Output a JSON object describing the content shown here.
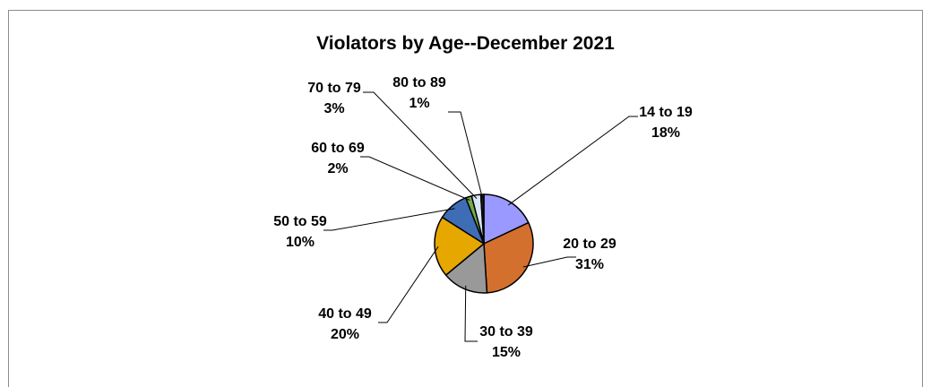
{
  "chart_data": {
    "type": "pie",
    "title": "Violators by Age--December 2021",
    "slices": [
      {
        "category": "14 to 19",
        "value": 18,
        "label": "18%",
        "color": "#9999ff"
      },
      {
        "category": "20 to 29",
        "value": 31,
        "label": "31%",
        "color": "#d4702e"
      },
      {
        "category": "30 to 39",
        "value": 15,
        "label": "15%",
        "color": "#999999"
      },
      {
        "category": "40 to 49",
        "value": 20,
        "label": "20%",
        "color": "#e6a800"
      },
      {
        "category": "50 to 59",
        "value": 10,
        "label": "10%",
        "color": "#3e6db5"
      },
      {
        "category": "60 to 69",
        "value": 2,
        "label": "2%",
        "color": "#72ac4d"
      },
      {
        "category": "70 to 79",
        "value": 3,
        "label": "3%",
        "color": "#d9e6f5"
      },
      {
        "category": "80 to 89",
        "value": 1,
        "label": "1%",
        "color": "#1f1f1f"
      }
    ],
    "legend": "none"
  }
}
